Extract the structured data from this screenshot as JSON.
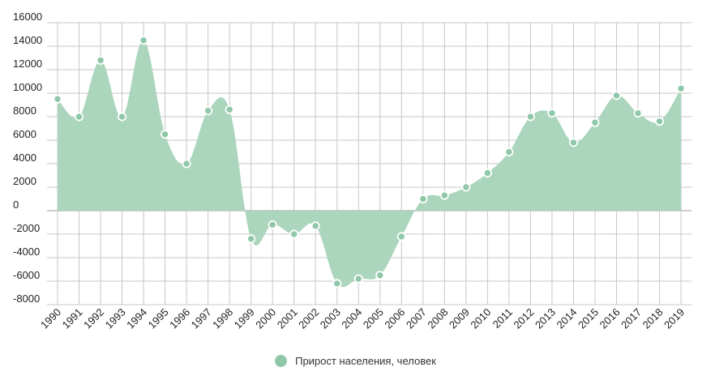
{
  "chart_data": {
    "type": "area",
    "x": [
      "1990",
      "1991",
      "1992",
      "1993",
      "1994",
      "1995",
      "1996",
      "1997",
      "1998",
      "1999",
      "2000",
      "2001",
      "2002",
      "2003",
      "2004",
      "2005",
      "2006",
      "2007",
      "2008",
      "2009",
      "2010",
      "2011",
      "2012",
      "2013",
      "2014",
      "2015",
      "2016",
      "2017",
      "2018",
      "2019"
    ],
    "series": [
      {
        "name": "Прирост населения, человек",
        "values": [
          9500,
          8000,
          12800,
          8000,
          14500,
          6500,
          4000,
          8500,
          8600,
          -2400,
          -1200,
          -2000,
          -1300,
          -6200,
          -5800,
          -5500,
          -2200,
          1000,
          1300,
          2000,
          3200,
          5000,
          8000,
          8300,
          5800,
          7500,
          9800,
          8300,
          7600,
          10400
        ]
      }
    ],
    "ylim": [
      -8000,
      16000
    ],
    "yticks": [
      "16000",
      "14000",
      "12000",
      "10000",
      "8000",
      "6000",
      "4000",
      "2000",
      "0",
      "-2000",
      "-4000",
      "-6000",
      "-8000"
    ],
    "grid": true,
    "legend_position": "bottom-center",
    "colors": {
      "fill": "#abd6bd",
      "marker": "#8fc8a9",
      "marker_stroke": "#ffffff",
      "grid": "#c7c7c7",
      "zero_line": "#999999"
    }
  }
}
